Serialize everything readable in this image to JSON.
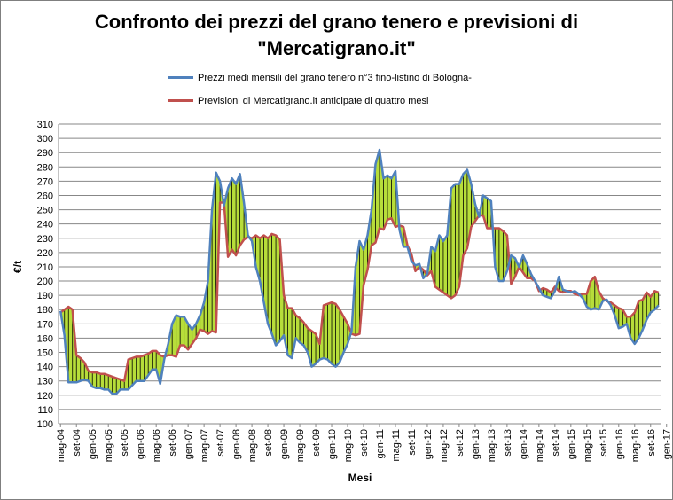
{
  "chart_data": {
    "type": "line",
    "title_line1": "Confronto dei prezzi del grano tenero e previsioni di",
    "title_line2": "\"Mercatigrano.it\"",
    "xlabel": "Mesi",
    "ylabel": "€/t",
    "ylim": [
      100,
      310
    ],
    "ytick_step": 10,
    "grid": true,
    "legend_position": "top",
    "fill_between_series": true,
    "fill_color": "#b7dd3a",
    "x_tick_labels": [
      "mag-04",
      "set-04",
      "gen-05",
      "mag-05",
      "set-05",
      "gen-06",
      "mag-06",
      "set-06",
      "gen-07",
      "mag-07",
      "set-07",
      "gen-08",
      "mag-08",
      "set-08",
      "gen-09",
      "mag-09",
      "set-09",
      "gen-10",
      "mag-10",
      "set-10",
      "gen-11",
      "mag-11",
      "set-11",
      "gen-12",
      "mag-12",
      "set-12",
      "gen-13",
      "mag-13",
      "set-13",
      "gen-14",
      "mag-14",
      "set-14",
      "gen-15",
      "mag-15",
      "set-15",
      "gen-16",
      "mag-16",
      "set-16",
      "gen-17"
    ],
    "series": [
      {
        "name": "Prezzi medi mensili del grano tenero n°3 fino-listino di Bologna-",
        "color": "#4f81bd",
        "values": [
          179,
          162,
          129,
          129,
          129,
          130,
          131,
          130,
          126,
          125,
          125,
          124,
          124,
          121,
          121,
          124,
          124,
          124,
          127,
          130,
          130,
          130,
          134,
          138,
          138,
          128,
          145,
          156,
          170,
          176,
          175,
          175,
          170,
          166,
          170,
          176,
          185,
          200,
          250,
          276,
          270,
          253,
          265,
          272,
          268,
          275,
          255,
          232,
          228,
          210,
          200,
          185,
          170,
          163,
          155,
          158,
          162,
          148,
          146,
          160,
          157,
          155,
          150,
          140,
          142,
          145,
          146,
          145,
          142,
          140,
          143,
          150,
          156,
          165,
          210,
          228,
          222,
          232,
          250,
          282,
          292,
          272,
          274,
          272,
          277,
          236,
          224,
          224,
          214,
          211,
          212,
          202,
          205,
          224,
          221,
          232,
          228,
          232,
          265,
          268,
          268,
          275,
          278,
          268,
          254,
          245,
          260,
          258,
          256,
          210,
          200,
          200,
          207,
          218,
          216,
          210,
          218,
          212,
          205,
          200,
          195,
          190,
          189,
          188,
          193,
          203,
          194,
          193,
          192,
          193,
          191,
          188,
          182,
          180,
          181,
          180,
          186,
          187,
          183,
          176,
          167,
          168,
          170,
          160,
          156,
          160,
          166,
          173,
          178,
          180,
          183
        ],
        "forecast": false
      },
      {
        "name": "Previsioni di Mercatigrano.it anticipate di quattro mesi",
        "color": "#c0504d",
        "values": [
          178,
          180,
          182,
          180,
          148,
          146,
          143,
          137,
          136,
          136,
          135,
          135,
          134,
          133,
          132,
          131,
          130,
          145,
          146,
          147,
          147,
          148,
          149,
          151,
          151,
          148,
          147,
          148,
          148,
          147,
          155,
          155,
          152,
          156,
          160,
          166,
          165,
          163,
          165,
          164,
          255,
          255,
          217,
          222,
          218,
          225,
          229,
          231,
          230,
          232,
          230,
          232,
          230,
          233,
          232,
          229,
          190,
          181,
          181,
          176,
          174,
          171,
          167,
          165,
          163,
          156,
          183,
          184,
          185,
          184,
          180,
          175,
          170,
          163,
          162,
          163,
          197,
          208,
          225,
          227,
          237,
          236,
          243,
          244,
          238,
          239,
          238,
          225,
          219,
          207,
          210,
          208,
          204,
          207,
          196,
          194,
          192,
          190,
          188,
          190,
          196,
          218,
          223,
          238,
          242,
          246,
          246,
          237,
          237,
          237,
          237,
          235,
          232,
          198,
          203,
          210,
          206,
          202,
          202,
          200,
          193,
          195,
          194,
          192,
          196,
          193,
          192,
          193,
          193,
          191,
          190,
          191,
          191,
          200,
          203,
          193,
          188,
          186,
          185,
          183,
          181,
          180,
          175,
          175,
          178,
          186,
          187,
          192,
          189,
          193,
          192
        ]
      }
    ]
  }
}
